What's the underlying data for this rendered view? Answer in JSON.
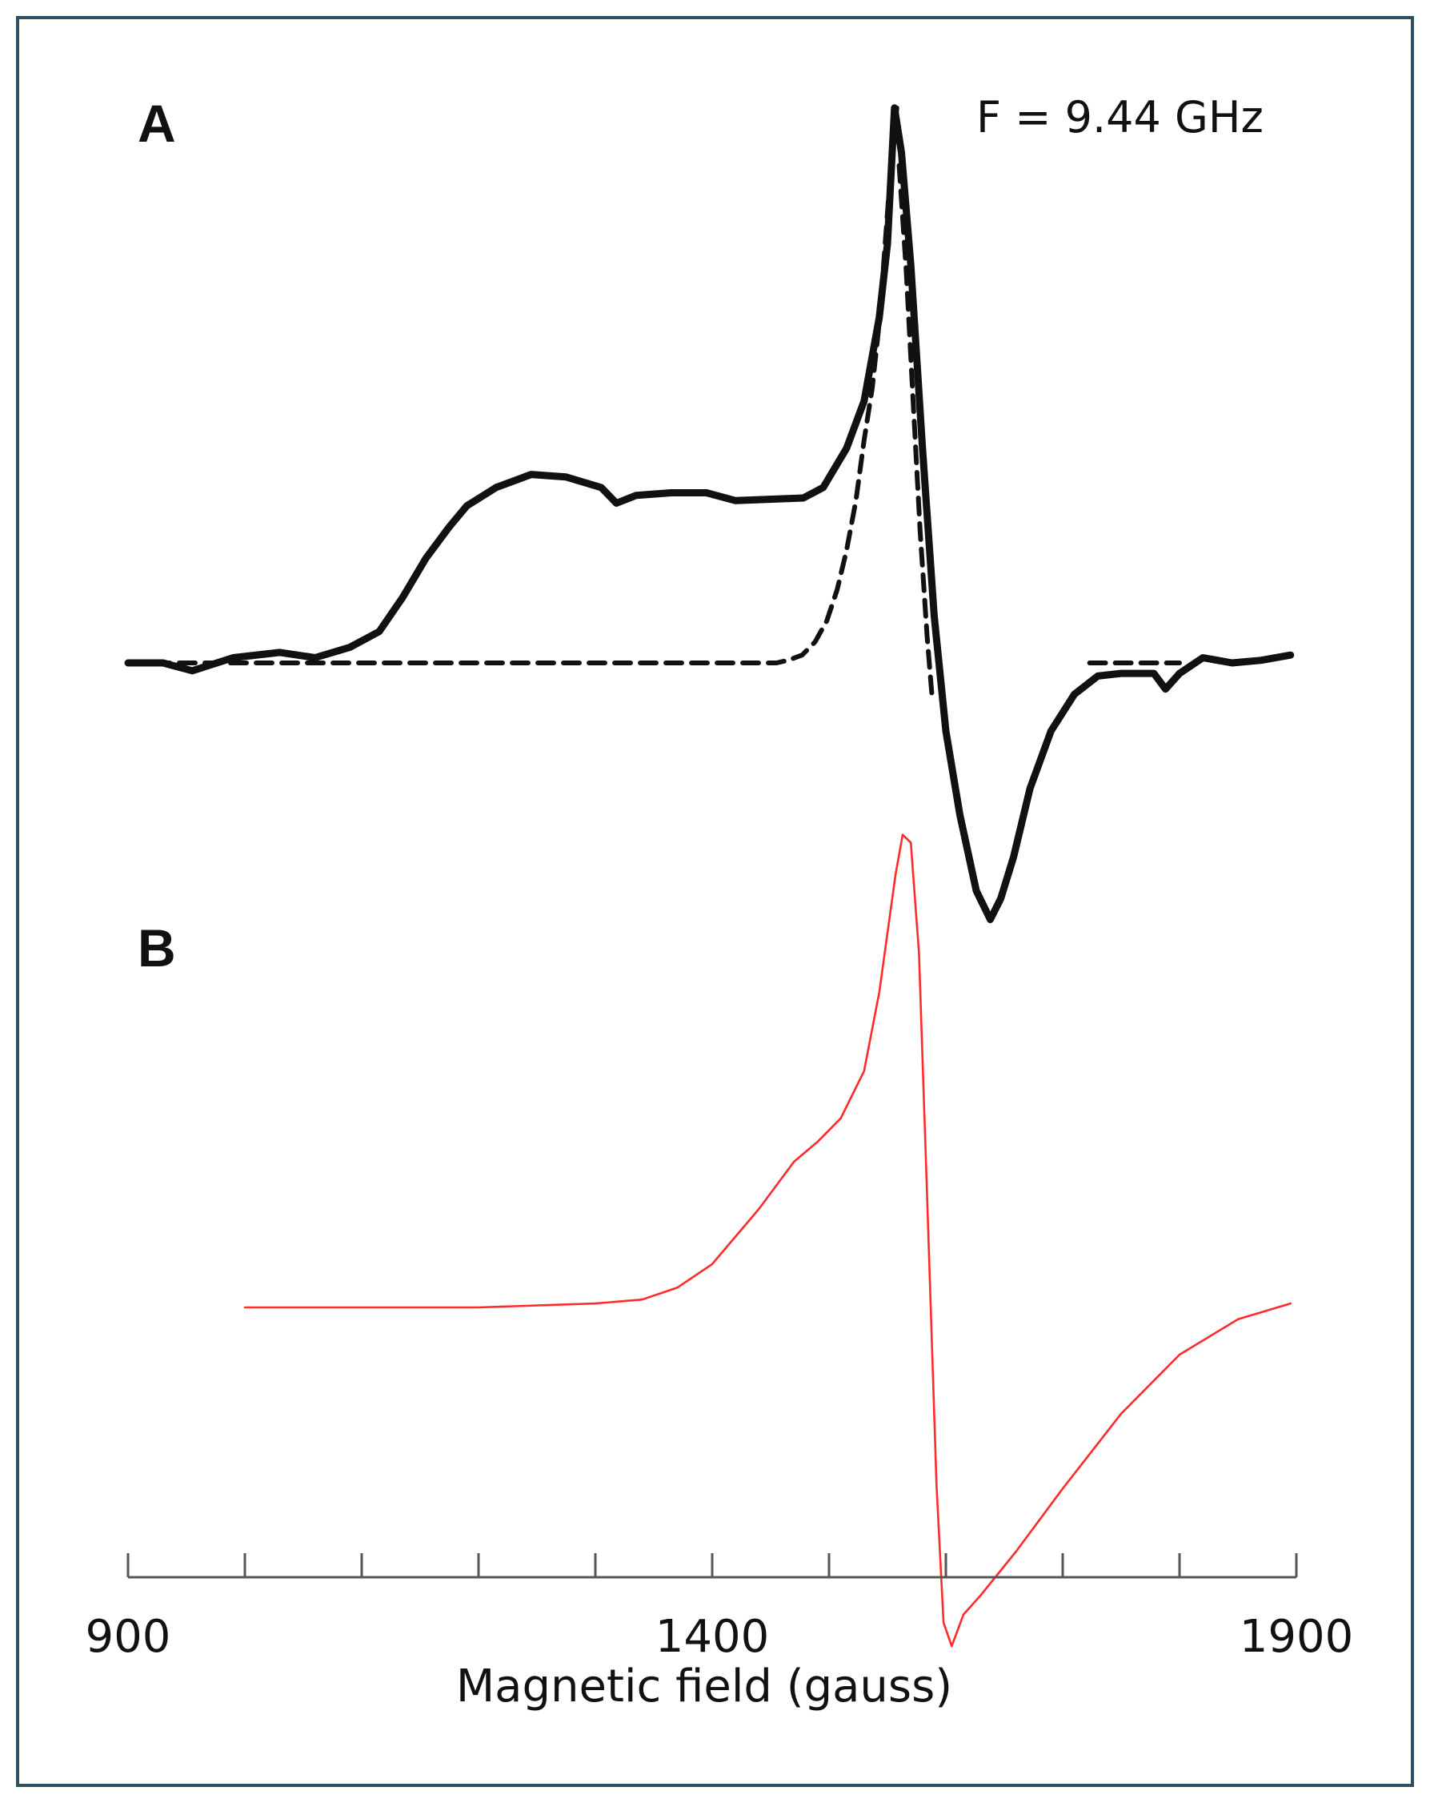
{
  "chart_data": [
    {
      "panel": "A",
      "type": "line",
      "annotation": "F = 9.44 GHz",
      "xlim": [
        900,
        1900
      ],
      "series": [
        {
          "style": "solid-black",
          "x": [
            900,
            930,
            955,
            990,
            1030,
            1060,
            1090,
            1115,
            1135,
            1155,
            1175,
            1190,
            1215,
            1245,
            1275,
            1305,
            1318,
            1335,
            1365,
            1395,
            1420,
            1478,
            1495,
            1515,
            1530,
            1543,
            1550,
            1556,
            1562,
            1570,
            1580,
            1590,
            1600,
            1612,
            1626,
            1638,
            1647,
            1658,
            1672,
            1690,
            1710,
            1730,
            1750,
            1778,
            1788,
            1800,
            1820,
            1845,
            1870,
            1895
          ],
          "y": [
            0.0,
            0.0,
            -0.03,
            0.02,
            0.04,
            0.02,
            0.06,
            0.12,
            0.25,
            0.4,
            0.52,
            0.6,
            0.67,
            0.72,
            0.71,
            0.67,
            0.61,
            0.64,
            0.65,
            0.65,
            0.62,
            0.63,
            0.67,
            0.82,
            1.0,
            1.32,
            1.6,
            2.12,
            1.95,
            1.52,
            0.82,
            0.18,
            -0.26,
            -0.58,
            -0.87,
            -0.98,
            -0.9,
            -0.74,
            -0.48,
            -0.26,
            -0.12,
            -0.05,
            -0.04,
            -0.04,
            -0.1,
            -0.04,
            0.02,
            0.0,
            0.01,
            0.03
          ]
        },
        {
          "style": "dashed-black",
          "x": [
            900,
            1000,
            1100,
            1200,
            1300,
            1400,
            1430,
            1455,
            1465,
            1477,
            1488,
            1498,
            1507,
            1515,
            1523,
            1530,
            1537,
            1543,
            1548,
            1553,
            1558
          ],
          "y": [
            0.0,
            0.0,
            0.0,
            0.0,
            0.0,
            0.0,
            0.0,
            0.0,
            0.01,
            0.03,
            0.08,
            0.16,
            0.28,
            0.43,
            0.62,
            0.85,
            1.05,
            1.3,
            1.6,
            1.9,
            2.12
          ]
        },
        {
          "style": "dashed-black",
          "x": [
            1560,
            1566,
            1572,
            1578,
            1584,
            1588
          ],
          "y": [
            1.9,
            1.5,
            1.0,
            0.5,
            0.1,
            -0.12
          ]
        },
        {
          "style": "dashed-black",
          "x": [
            1723,
            1745,
            1770,
            1790,
            1800
          ],
          "y": [
            0.0,
            0.0,
            0.0,
            0.0,
            0.0
          ]
        }
      ]
    },
    {
      "panel": "B",
      "type": "line",
      "xlim": [
        900,
        1900
      ],
      "series": [
        {
          "style": "solid-red",
          "x": [
            1000,
            1100,
            1200,
            1300,
            1340,
            1370,
            1400,
            1440,
            1470,
            1490,
            1510,
            1530,
            1543,
            1550,
            1557,
            1563,
            1570,
            1577,
            1584,
            1592,
            1598,
            1605,
            1615,
            1630,
            1660,
            1700,
            1750,
            1800,
            1850,
            1895
          ],
          "y": [
            0.0,
            0.0,
            0.0,
            0.01,
            0.02,
            0.05,
            0.11,
            0.25,
            0.37,
            0.42,
            0.48,
            0.6,
            0.8,
            0.95,
            1.1,
            1.2,
            1.18,
            0.9,
            0.28,
            -0.45,
            -0.8,
            -0.86,
            -0.78,
            -0.73,
            -0.62,
            -0.46,
            -0.27,
            -0.12,
            -0.03,
            0.01
          ]
        }
      ]
    }
  ],
  "shared_x_axis": {
    "label": "Magnetic field (gauss)",
    "range": [
      900,
      1900
    ],
    "major_ticks": [
      900,
      1000,
      1100,
      1200,
      1300,
      1400,
      1500,
      1600,
      1700,
      1800,
      1900
    ],
    "tick_labels": [
      {
        "value": 900,
        "text": "900"
      },
      {
        "value": 1400,
        "text": "1400"
      },
      {
        "value": 1900,
        "text": "1900"
      }
    ]
  },
  "colors": {
    "frame": "#2f4f5f",
    "trace_a": "#111111",
    "trace_b": "#ff2a2a",
    "axis": "#555555"
  }
}
